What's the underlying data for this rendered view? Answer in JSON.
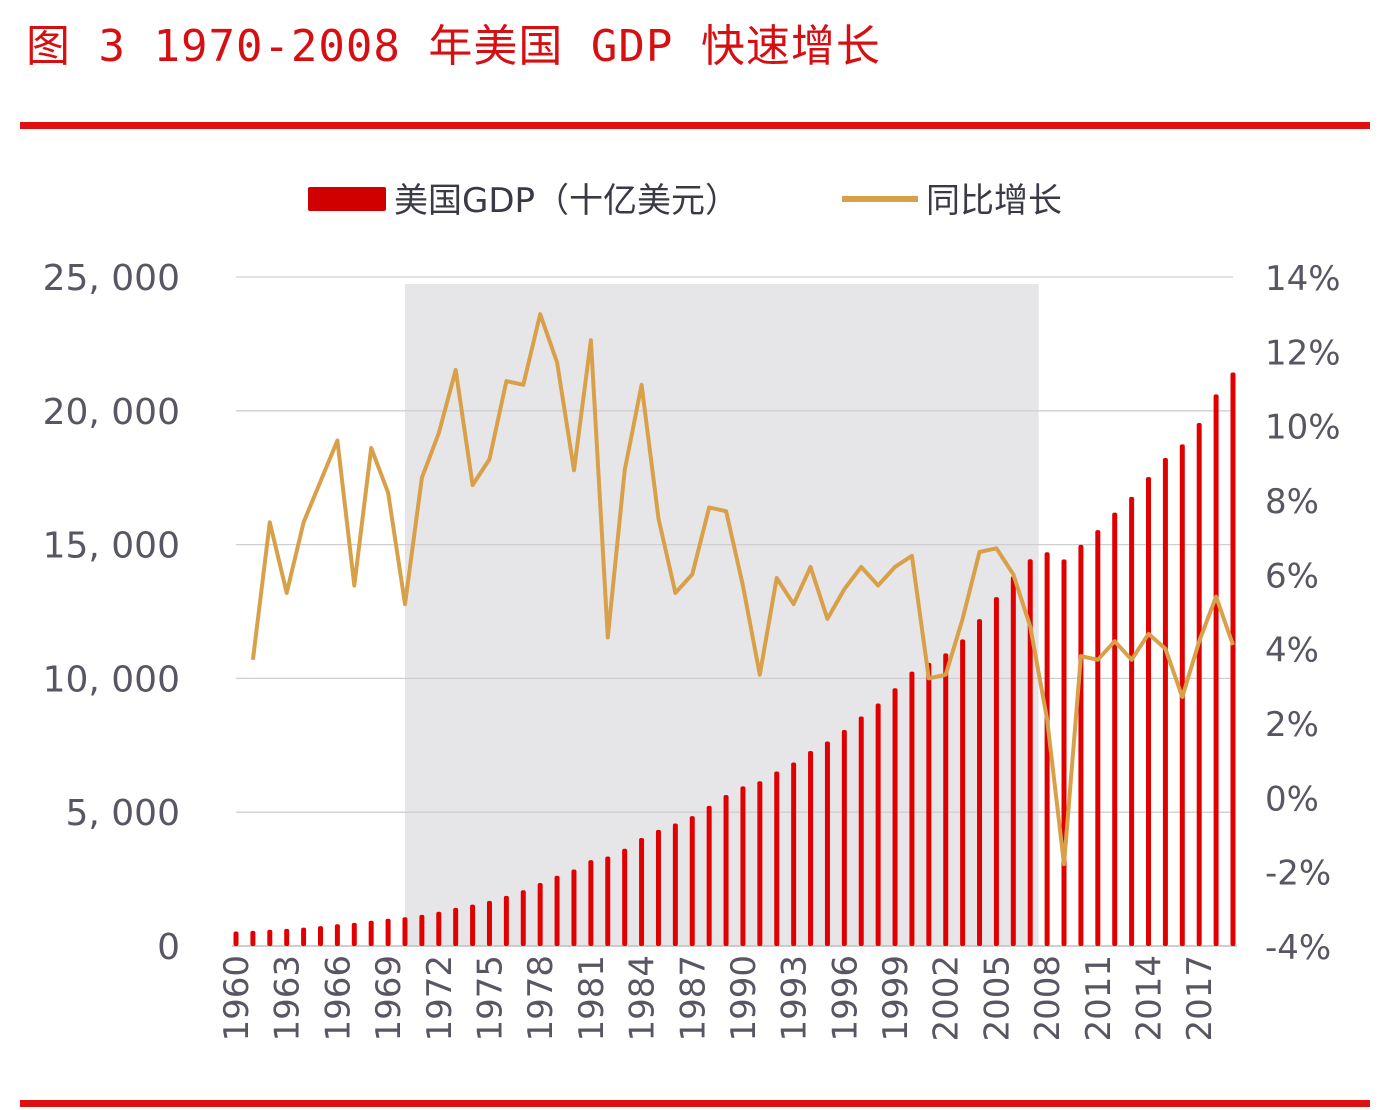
{
  "figure_title": "图 3   1970-2008 年美国 GDP 快速增长",
  "colors": {
    "bars": "#e00000",
    "line": "#d9a04a",
    "shade": "#e6e6e8",
    "title": "#d60f12",
    "rule": "#e01010"
  },
  "chart_data": {
    "type": "bar+line",
    "title": "",
    "legend": {
      "placement": "top",
      "entries": [
        "美国GDP（十亿美元）",
        "同比增长"
      ]
    },
    "x": [
      1960,
      1961,
      1962,
      1963,
      1964,
      1965,
      1966,
      1967,
      1968,
      1969,
      1970,
      1971,
      1972,
      1973,
      1974,
      1975,
      1976,
      1977,
      1978,
      1979,
      1980,
      1981,
      1982,
      1983,
      1984,
      1985,
      1986,
      1987,
      1988,
      1989,
      1990,
      1991,
      1992,
      1993,
      1994,
      1995,
      1996,
      1997,
      1998,
      1999,
      2000,
      2001,
      2002,
      2003,
      2004,
      2005,
      2006,
      2007,
      2008,
      2009,
      2010,
      2011,
      2012,
      2013,
      2014,
      2015,
      2016,
      2017,
      2018,
      2019
    ],
    "x_tick_labels": [
      "1960",
      "1963",
      "1966",
      "1969",
      "1972",
      "1975",
      "1978",
      "1981",
      "1984",
      "1987",
      "1990",
      "1993",
      "1996",
      "1999",
      "2002",
      "2005",
      "2008",
      "2011",
      "2014",
      "2017"
    ],
    "shaded_range": [
      1970,
      2007.5
    ],
    "series": [
      {
        "name": "美国GDP（十亿美元）",
        "type": "bar",
        "axis": "left",
        "values": [
          543,
          563,
          605,
          639,
          686,
          744,
          815,
          862,
          943,
          1019,
          1073,
          1165,
          1280,
          1425,
          1545,
          1684,
          1873,
          2082,
          2352,
          2627,
          2857,
          3207,
          3343,
          3634,
          4037,
          4339,
          4580,
          4855,
          5236,
          5642,
          5963,
          6158,
          6520,
          6859,
          7287,
          7640,
          8073,
          8578,
          9063,
          9631,
          10252,
          10582,
          10936,
          11458,
          12214,
          13037,
          13815,
          14452,
          14713,
          14449,
          14992,
          15543,
          16197,
          16785,
          17527,
          18238,
          18745,
          19543,
          20612,
          21433
        ]
      },
      {
        "name": "同比增长",
        "type": "line",
        "axis": "right",
        "unit": "%",
        "values": [
          null,
          3.7,
          7.4,
          5.5,
          7.4,
          8.5,
          9.6,
          5.7,
          9.4,
          8.2,
          5.2,
          8.6,
          9.8,
          11.5,
          8.4,
          9.1,
          11.2,
          11.1,
          13.0,
          11.7,
          8.8,
          12.3,
          4.3,
          8.8,
          11.1,
          7.5,
          5.5,
          6.0,
          7.8,
          7.7,
          5.7,
          3.3,
          5.9,
          5.2,
          6.2,
          4.8,
          5.6,
          6.2,
          5.7,
          6.2,
          6.5,
          3.2,
          3.3,
          4.8,
          6.6,
          6.7,
          6.0,
          4.6,
          2.1,
          -1.8,
          3.8,
          3.7,
          4.2,
          3.7,
          4.4,
          4.0,
          2.7,
          4.2,
          5.4,
          4.1
        ]
      }
    ],
    "y_left": {
      "range": [
        0,
        25000
      ],
      "tick_labels": [
        "0",
        "5, 000",
        "10, 000",
        "15, 000",
        "20, 000",
        "25, 000"
      ],
      "ticks": [
        0,
        5000,
        10000,
        15000,
        20000,
        25000
      ]
    },
    "y_right": {
      "range": [
        -4,
        14
      ],
      "tick_labels": [
        "-4%",
        "-2%",
        "0%",
        "2%",
        "4%",
        "6%",
        "8%",
        "10%",
        "12%",
        "14%"
      ],
      "ticks": [
        -4,
        -2,
        0,
        2,
        4,
        6,
        8,
        10,
        12,
        14
      ]
    },
    "grid": true
  }
}
